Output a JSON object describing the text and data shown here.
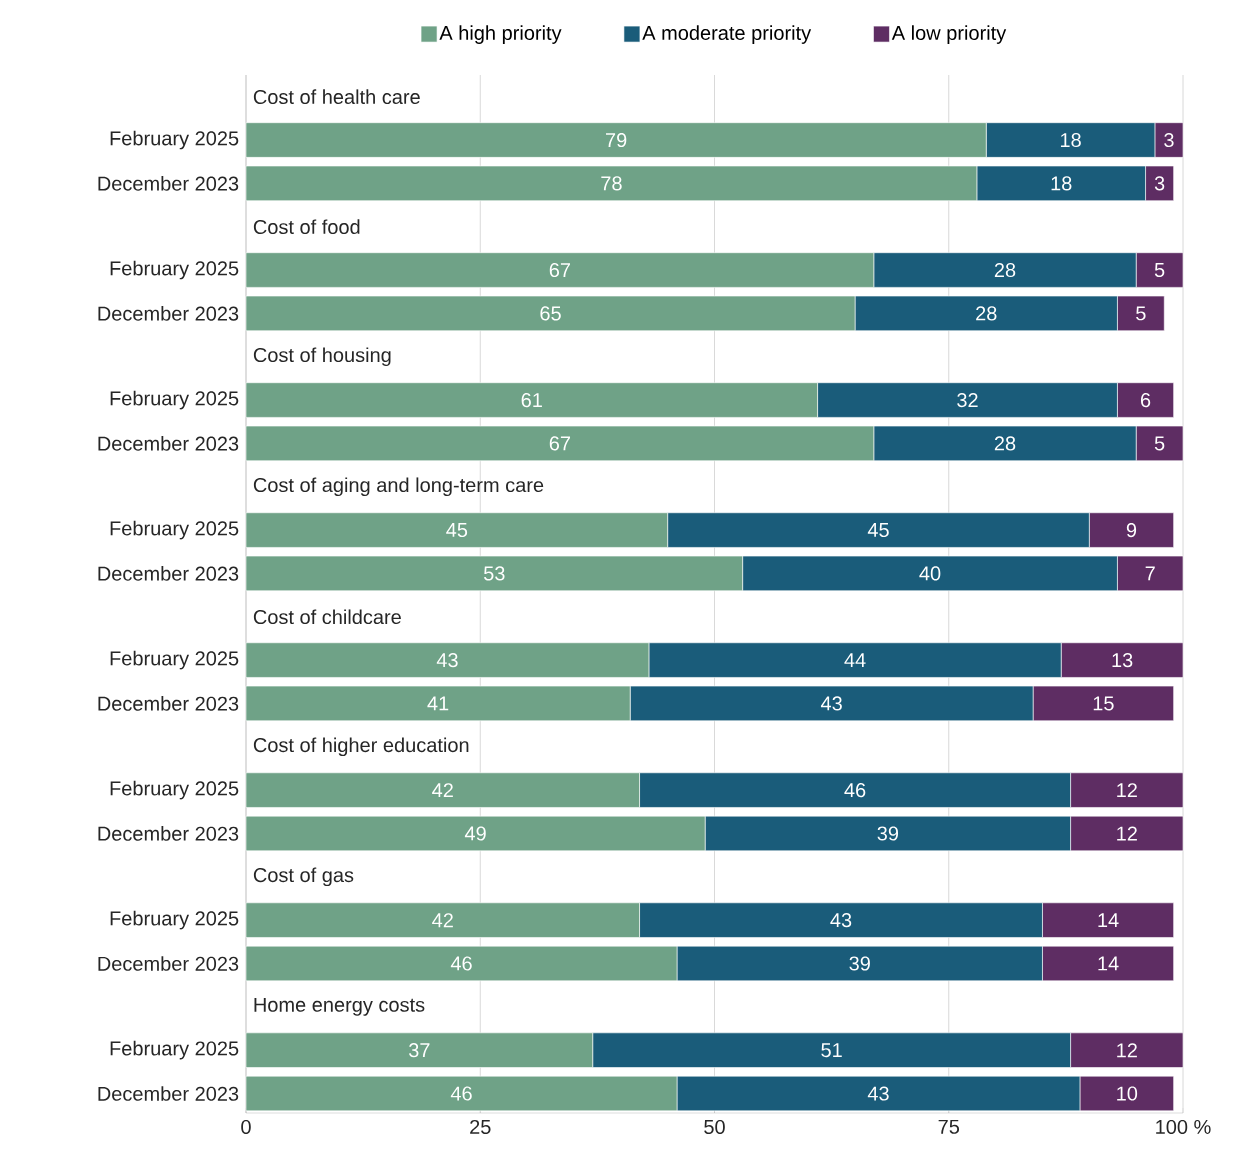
{
  "chart_data": {
    "type": "bar",
    "orientation": "horizontal",
    "stacked": true,
    "categories": [
      "February 2025",
      "December 2023",
      "February 2025",
      "December 2023",
      "February 2025",
      "December 2023",
      "February 2025",
      "December 2023",
      "February 2025",
      "December 2023",
      "February 2025",
      "December 2023",
      "February 2025",
      "December 2023",
      "February 2025",
      "December 2023"
    ],
    "series": [
      {
        "name": "A high priority",
        "color": "#6fa287",
        "values": [
          79,
          78,
          67,
          65,
          61,
          67,
          45,
          53,
          43,
          41,
          42,
          49,
          42,
          46,
          37,
          46
        ]
      },
      {
        "name": "A moderate priority",
        "color": "#1a5c7a",
        "values": [
          18,
          18,
          28,
          28,
          32,
          28,
          45,
          40,
          44,
          43,
          46,
          39,
          43,
          39,
          51,
          43
        ]
      },
      {
        "name": "A low priority",
        "color": "#5e2d63",
        "values": [
          3,
          3,
          5,
          5,
          6,
          5,
          9,
          7,
          13,
          15,
          12,
          12,
          14,
          14,
          12,
          10
        ]
      }
    ],
    "xlim": [
      0,
      100
    ],
    "xticks": [
      0,
      25,
      50,
      75,
      {
        "value": 100,
        "label": "100 %"
      }
    ],
    "grid": "x",
    "legend": "top",
    "data_labels": true,
    "annotations": [
      "Cost of health care",
      "Cost of food",
      "Cost of housing",
      "Cost of aging and long-term care",
      "Cost of childcare",
      "Cost of higher education",
      "Cost of gas",
      "Home energy costs"
    ]
  }
}
